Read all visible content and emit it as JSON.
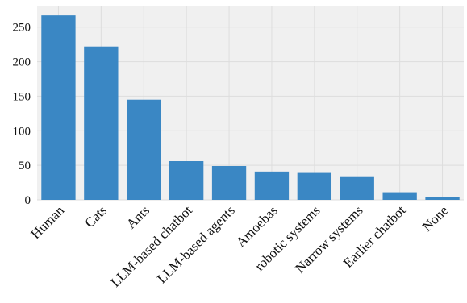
{
  "chart_data": {
    "type": "bar",
    "title": "",
    "xlabel": "",
    "ylabel": "",
    "categories": [
      "Human",
      "Cats",
      "Ants",
      "LLM-based chatbot",
      "LLM-based agents",
      "Amoebas",
      "robotic systems",
      "Narrow systems",
      "Earlier chatbot",
      "None"
    ],
    "values": [
      267,
      222,
      145,
      56,
      49,
      41,
      39,
      33,
      11,
      4
    ],
    "ylim": [
      0,
      280
    ],
    "yticks": [
      0,
      50,
      100,
      150,
      200,
      250
    ],
    "grid": true,
    "legend": "none",
    "bar_color": "#3a87c4",
    "grid_color": "#dddddd",
    "plot_bg": "#f0f0f0"
  }
}
